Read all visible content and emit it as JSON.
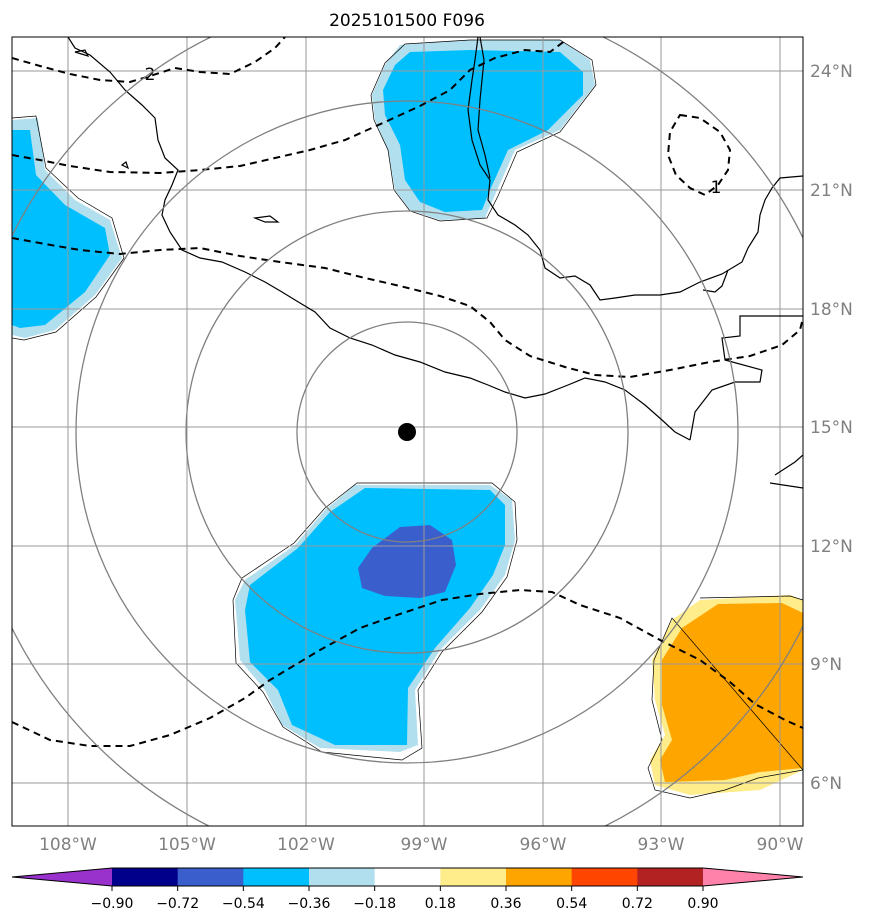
{
  "title": "2025101500 F096",
  "axes": {
    "lat_labels": [
      "24°N",
      "21°N",
      "18°N",
      "15°N",
      "12°N",
      "9°N",
      "6°N"
    ],
    "lon_labels": [
      "108°W",
      "105°W",
      "102°W",
      "99°W",
      "96°W",
      "93°W",
      "90°W"
    ],
    "lat_values": [
      24,
      21,
      18,
      15,
      12,
      9,
      6
    ],
    "lon_values": [
      -108,
      -105,
      -102,
      -99,
      -96,
      -93,
      -90
    ]
  },
  "center_marker": {
    "lat": 14.9,
    "lon": -99.4
  },
  "range_rings": {
    "count": 4
  },
  "contours": [
    {
      "label": "2",
      "style": "dashed"
    },
    {
      "label": "1",
      "style": "dashed"
    }
  ],
  "colorbar": {
    "tick_labels": [
      "−0.90",
      "−0.72",
      "−0.54",
      "−0.36",
      "−0.18",
      "0.18",
      "0.36",
      "0.54",
      "0.72",
      "0.90"
    ],
    "levels": [
      -0.9,
      -0.72,
      -0.54,
      -0.36,
      -0.18,
      0.18,
      0.36,
      0.54,
      0.72,
      0.9
    ],
    "colors": [
      "#9932cc",
      "#00008b",
      "#3a5fcd",
      "#00bfff",
      "#b2dfee",
      "#ffffff",
      "#ffec8b",
      "#ffa500",
      "#ff4500",
      "#b22222",
      "#ff82ab"
    ]
  }
}
